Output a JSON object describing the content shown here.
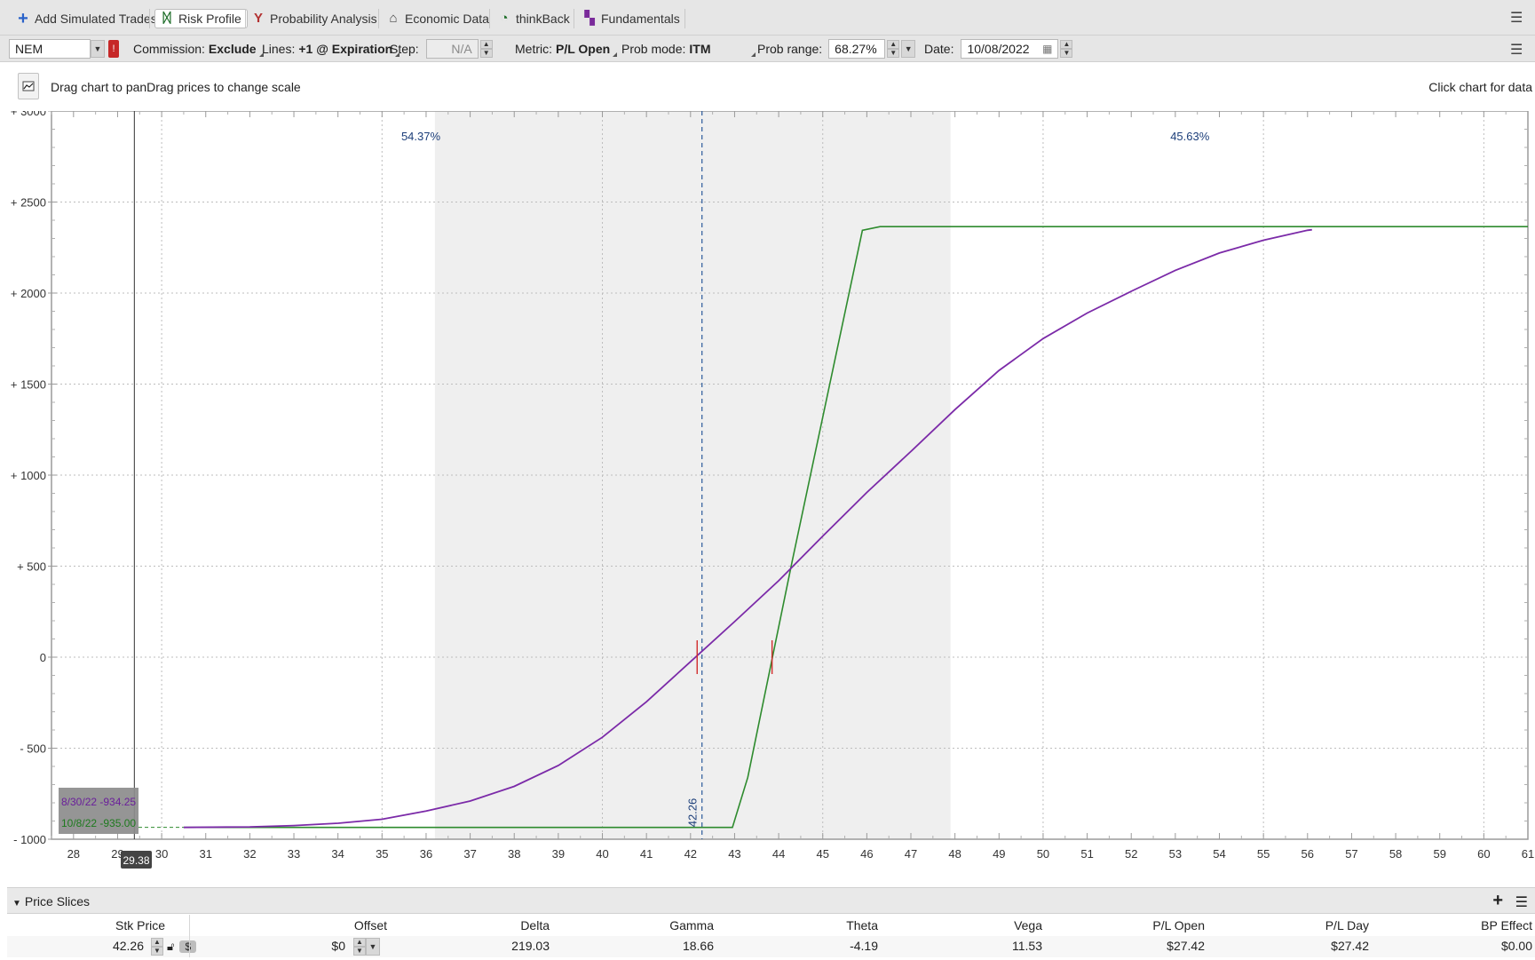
{
  "tabs": [
    {
      "label": "Add Simulated Trades",
      "icon": "plus-icon"
    },
    {
      "label": "Risk Profile",
      "icon": "risk-profile-icon",
      "active": true
    },
    {
      "label": "Probability Analysis",
      "icon": "probability-icon"
    },
    {
      "label": "Economic Data",
      "icon": "bank-icon"
    },
    {
      "label": "thinkBack",
      "icon": "clock-icon"
    },
    {
      "label": "Fundamentals",
      "icon": "fundamentals-icon"
    }
  ],
  "settings": {
    "symbol": "NEM",
    "flag": "!",
    "commission_label": "Commission:",
    "commission_value": "Exclude",
    "lines_label": "Lines:",
    "lines_value": "+1 @ Expiration",
    "step_label": "Step:",
    "step_value": "N/A",
    "metric_label": "Metric:",
    "metric_value": "P/L Open",
    "prob_mode_label": "Prob mode:",
    "prob_mode_value": "ITM",
    "prob_range_label": "Prob range:",
    "prob_range_value": "68.27%",
    "date_label": "Date:",
    "date_value": "10/08/2022"
  },
  "hint": {
    "text": "Drag chart to panDrag prices to change scale",
    "right": "Click chart for data"
  },
  "colors": {
    "purple_curve": "#7b2aa8",
    "green_curve": "#2e8b2e",
    "shade": "#efefef",
    "dashed_line": "#2a5a9a"
  },
  "chart_data": {
    "type": "line",
    "xlim": [
      27.5,
      61
    ],
    "ylim": [
      -1000,
      3000
    ],
    "x_ticks": [
      "28",
      "29",
      "30",
      "31",
      "32",
      "33",
      "34",
      "35",
      "36",
      "37",
      "38",
      "39",
      "40",
      "41",
      "42",
      "43",
      "44",
      "45",
      "46",
      "47",
      "48",
      "49",
      "50",
      "51",
      "52",
      "53",
      "54",
      "55",
      "56",
      "57",
      "58",
      "59",
      "60",
      "61"
    ],
    "y_ticks": [
      {
        "value": 3000,
        "label": "+ 3000"
      },
      {
        "value": 2500,
        "label": "+ 2500"
      },
      {
        "value": 2000,
        "label": "+ 2000"
      },
      {
        "value": 1500,
        "label": "+ 1500"
      },
      {
        "value": 1000,
        "label": "+ 1000"
      },
      {
        "value": 500,
        "label": "+ 500"
      },
      {
        "value": 0,
        "label": "0"
      },
      {
        "value": -500,
        "label": "- 500"
      },
      {
        "value": -1000,
        "label": "- 1000"
      }
    ],
    "probability_range": [
      36.2,
      47.9
    ],
    "prob_left_label": "54.37%",
    "prob_right_label": "45.63%",
    "current_price": 42.26,
    "current_price_label": "42.26",
    "cursor_price": 29.38,
    "cursor_price_label": "29.38",
    "breakevens": [
      42.15,
      43.85
    ],
    "series": [
      {
        "name": "8/30/22",
        "role": "today",
        "points": [
          [
            30.5,
            -935
          ],
          [
            32,
            -932
          ],
          [
            33,
            -925
          ],
          [
            34,
            -912
          ],
          [
            35,
            -890
          ],
          [
            36,
            -845
          ],
          [
            37,
            -790
          ],
          [
            38,
            -710
          ],
          [
            39,
            -595
          ],
          [
            40,
            -440
          ],
          [
            41,
            -245
          ],
          [
            42,
            -25
          ],
          [
            43,
            195
          ],
          [
            44,
            420
          ],
          [
            45,
            665
          ],
          [
            46,
            905
          ],
          [
            47,
            1130
          ],
          [
            48,
            1360
          ],
          [
            49,
            1575
          ],
          [
            50,
            1750
          ],
          [
            51,
            1890
          ],
          [
            52,
            2010
          ],
          [
            53,
            2125
          ],
          [
            54,
            2220
          ],
          [
            55,
            2290
          ],
          [
            56,
            2345
          ],
          [
            56.1,
            2348
          ]
        ]
      },
      {
        "name": "10/8/22",
        "role": "expiration",
        "points": [
          [
            30.5,
            -935
          ],
          [
            42.95,
            -935
          ],
          [
            43.3,
            -660
          ],
          [
            44.3,
            520
          ],
          [
            45.9,
            2345
          ],
          [
            46.3,
            2365
          ],
          [
            61,
            2365
          ]
        ]
      }
    ],
    "tooltip": {
      "line1": "8/30/22  -934.25",
      "line2": "10/8/22  -935.00"
    }
  },
  "price_slices": {
    "title": "Price Slices",
    "columns": [
      "Stk Price",
      "Offset",
      "Delta",
      "Gamma",
      "Theta",
      "Vega",
      "P/L Open",
      "P/L Day",
      "BP Effect"
    ],
    "row": {
      "stk_price": "42.26",
      "offset": "$0",
      "offset_unit": "$",
      "delta": "219.03",
      "gamma": "18.66",
      "theta": "-4.19",
      "vega": "11.53",
      "pl_open": "$27.42",
      "pl_day": "$27.42",
      "bp_effect": "$0.00"
    }
  }
}
